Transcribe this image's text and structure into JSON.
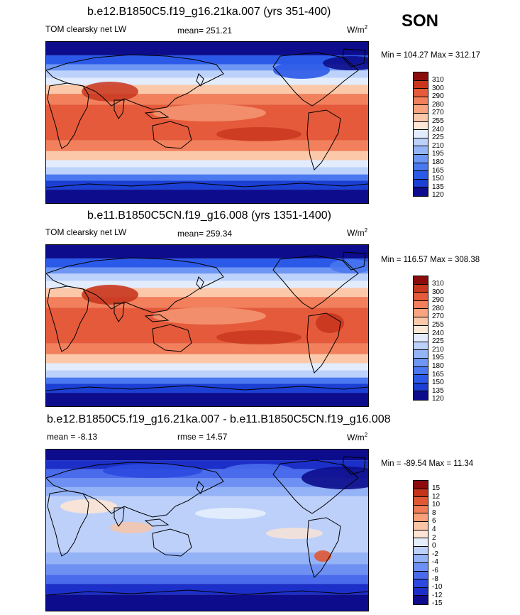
{
  "season": "SON",
  "panels": [
    {
      "title": "b.e12.B1850C5.f19_g16.21ka.007 (yrs 351-400)",
      "left_label": "TOM clearsky net LW",
      "center_label": "mean= 251.21",
      "units": "W/m",
      "units_exp": "2",
      "minmax": "Min = 104.27 Max = 312.17",
      "colorbar_labels": [
        "310",
        "300",
        "290",
        "280",
        "270",
        "255",
        "240",
        "225",
        "210",
        "195",
        "180",
        "165",
        "150",
        "135",
        "120"
      ]
    },
    {
      "title": "b.e11.B1850C5CN.f19_g16.008 (yrs 1351-1400)",
      "left_label": "TOM clearsky net LW",
      "center_label": "mean= 259.34",
      "units": "W/m",
      "units_exp": "2",
      "minmax": "Min = 116.57 Max = 308.38",
      "colorbar_labels": [
        "310",
        "300",
        "290",
        "280",
        "270",
        "255",
        "240",
        "225",
        "210",
        "195",
        "180",
        "165",
        "150",
        "135",
        "120"
      ]
    },
    {
      "title": "b.e12.B1850C5.f19_g16.21ka.007 - b.e11.B1850C5CN.f19_g16.008",
      "left_label": "mean =  -8.13",
      "center_label": "rmse =  14.57",
      "units": "W/m",
      "units_exp": "2",
      "minmax": "Min = -89.54 Max =  11.34",
      "colorbar_labels": [
        "15",
        "12",
        "10",
        "8",
        "6",
        "4",
        "2",
        "0",
        "-2",
        "-4",
        "-6",
        "-8",
        "-10",
        "-12",
        "-15"
      ]
    }
  ],
  "chart_data": [
    {
      "type": "heatmap",
      "title": "b.e12.B1850C5.f19_g16.21ka.007 (yrs 351-400)",
      "variable": "TOM clearsky net LW",
      "units": "W/m2",
      "mean": 251.21,
      "min": 104.27,
      "max": 312.17,
      "contour_levels": [
        120,
        135,
        150,
        165,
        180,
        195,
        210,
        225,
        240,
        255,
        270,
        280,
        290,
        300,
        310
      ],
      "colors": [
        "#0c0c8c",
        "#1c3fd4",
        "#2c5ae8",
        "#4a78f0",
        "#6e96f4",
        "#94b4f8",
        "#bcd2fb",
        "#e2ecfd",
        "#fde8d8",
        "#fbc9aa",
        "#f8a480",
        "#f2805c",
        "#e55a3a",
        "#c8361e",
        "#8c0c0c"
      ]
    },
    {
      "type": "heatmap",
      "title": "b.e11.B1850C5CN.f19_g16.008 (yrs 1351-1400)",
      "variable": "TOM clearsky net LW",
      "units": "W/m2",
      "mean": 259.34,
      "min": 116.57,
      "max": 308.38,
      "contour_levels": [
        120,
        135,
        150,
        165,
        180,
        195,
        210,
        225,
        240,
        255,
        270,
        280,
        290,
        300,
        310
      ],
      "colors": [
        "#0c0c8c",
        "#1c3fd4",
        "#2c5ae8",
        "#4a78f0",
        "#6e96f4",
        "#94b4f8",
        "#bcd2fb",
        "#e2ecfd",
        "#fde8d8",
        "#fbc9aa",
        "#f8a480",
        "#f2805c",
        "#e55a3a",
        "#c8361e",
        "#8c0c0c"
      ]
    },
    {
      "type": "heatmap",
      "title": "b.e12.B1850C5.f19_g16.21ka.007 - b.e11.B1850C5CN.f19_g16.008",
      "units": "W/m2",
      "mean": -8.13,
      "rmse": 14.57,
      "min": -89.54,
      "max": 11.34,
      "contour_levels": [
        -15,
        -12,
        -10,
        -8,
        -6,
        -4,
        -2,
        0,
        2,
        4,
        6,
        8,
        10,
        12,
        15
      ],
      "colors": [
        "#0c0c8c",
        "#1c2fc8",
        "#2c4ae0",
        "#4a6cec",
        "#6e90f2",
        "#94b2f6",
        "#bcd0fa",
        "#e4eefd",
        "#fde4d4",
        "#fbc4a4",
        "#f8a07a",
        "#f07c56",
        "#e05834",
        "#c4341c",
        "#8c0c0c"
      ]
    }
  ]
}
